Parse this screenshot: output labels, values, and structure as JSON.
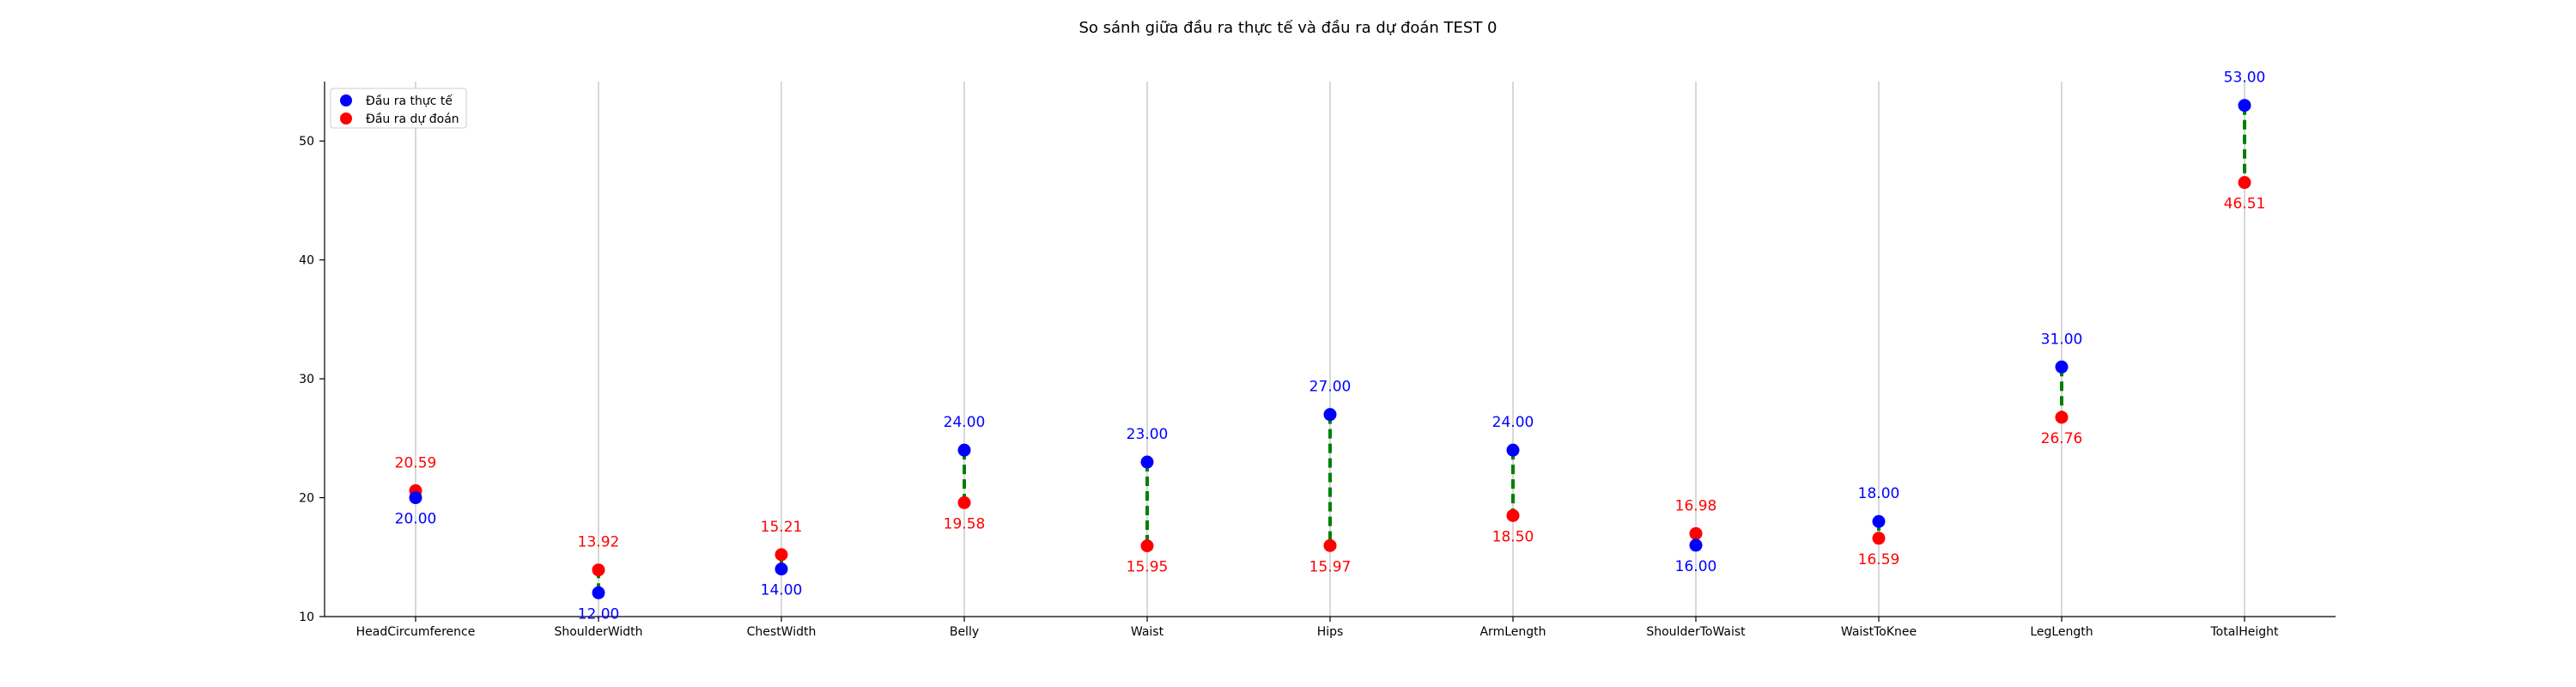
{
  "chart_data": {
    "type": "scatter",
    "title": "So sánh giữa đầu ra thực tế và đầu ra dự đoán TEST 0",
    "xlabel": "",
    "ylabel": "",
    "categories": [
      "HeadCircumference",
      "ShoulderWidth",
      "ChestWidth",
      "Belly",
      "Waist",
      "Hips",
      "ArmLength",
      "ShoulderToWaist",
      "WaistToKnee",
      "LegLength",
      "TotalHeight"
    ],
    "series": [
      {
        "name": "Đầu ra thực tế",
        "color": "#0000ff",
        "values": [
          20.0,
          12.0,
          14.0,
          24.0,
          23.0,
          27.0,
          24.0,
          16.0,
          18.0,
          31.0,
          53.0
        ]
      },
      {
        "name": "Đầu ra dự đoán",
        "color": "#ff0000",
        "values": [
          20.59,
          13.92,
          15.21,
          19.58,
          15.95,
          15.97,
          18.5,
          16.98,
          16.59,
          26.76,
          46.51
        ]
      }
    ],
    "connector_color": "#008000",
    "ylim": [
      10,
      55
    ],
    "yticks": [
      10,
      20,
      30,
      40,
      50
    ],
    "grid": "vertical",
    "legend_position": "top-left"
  }
}
